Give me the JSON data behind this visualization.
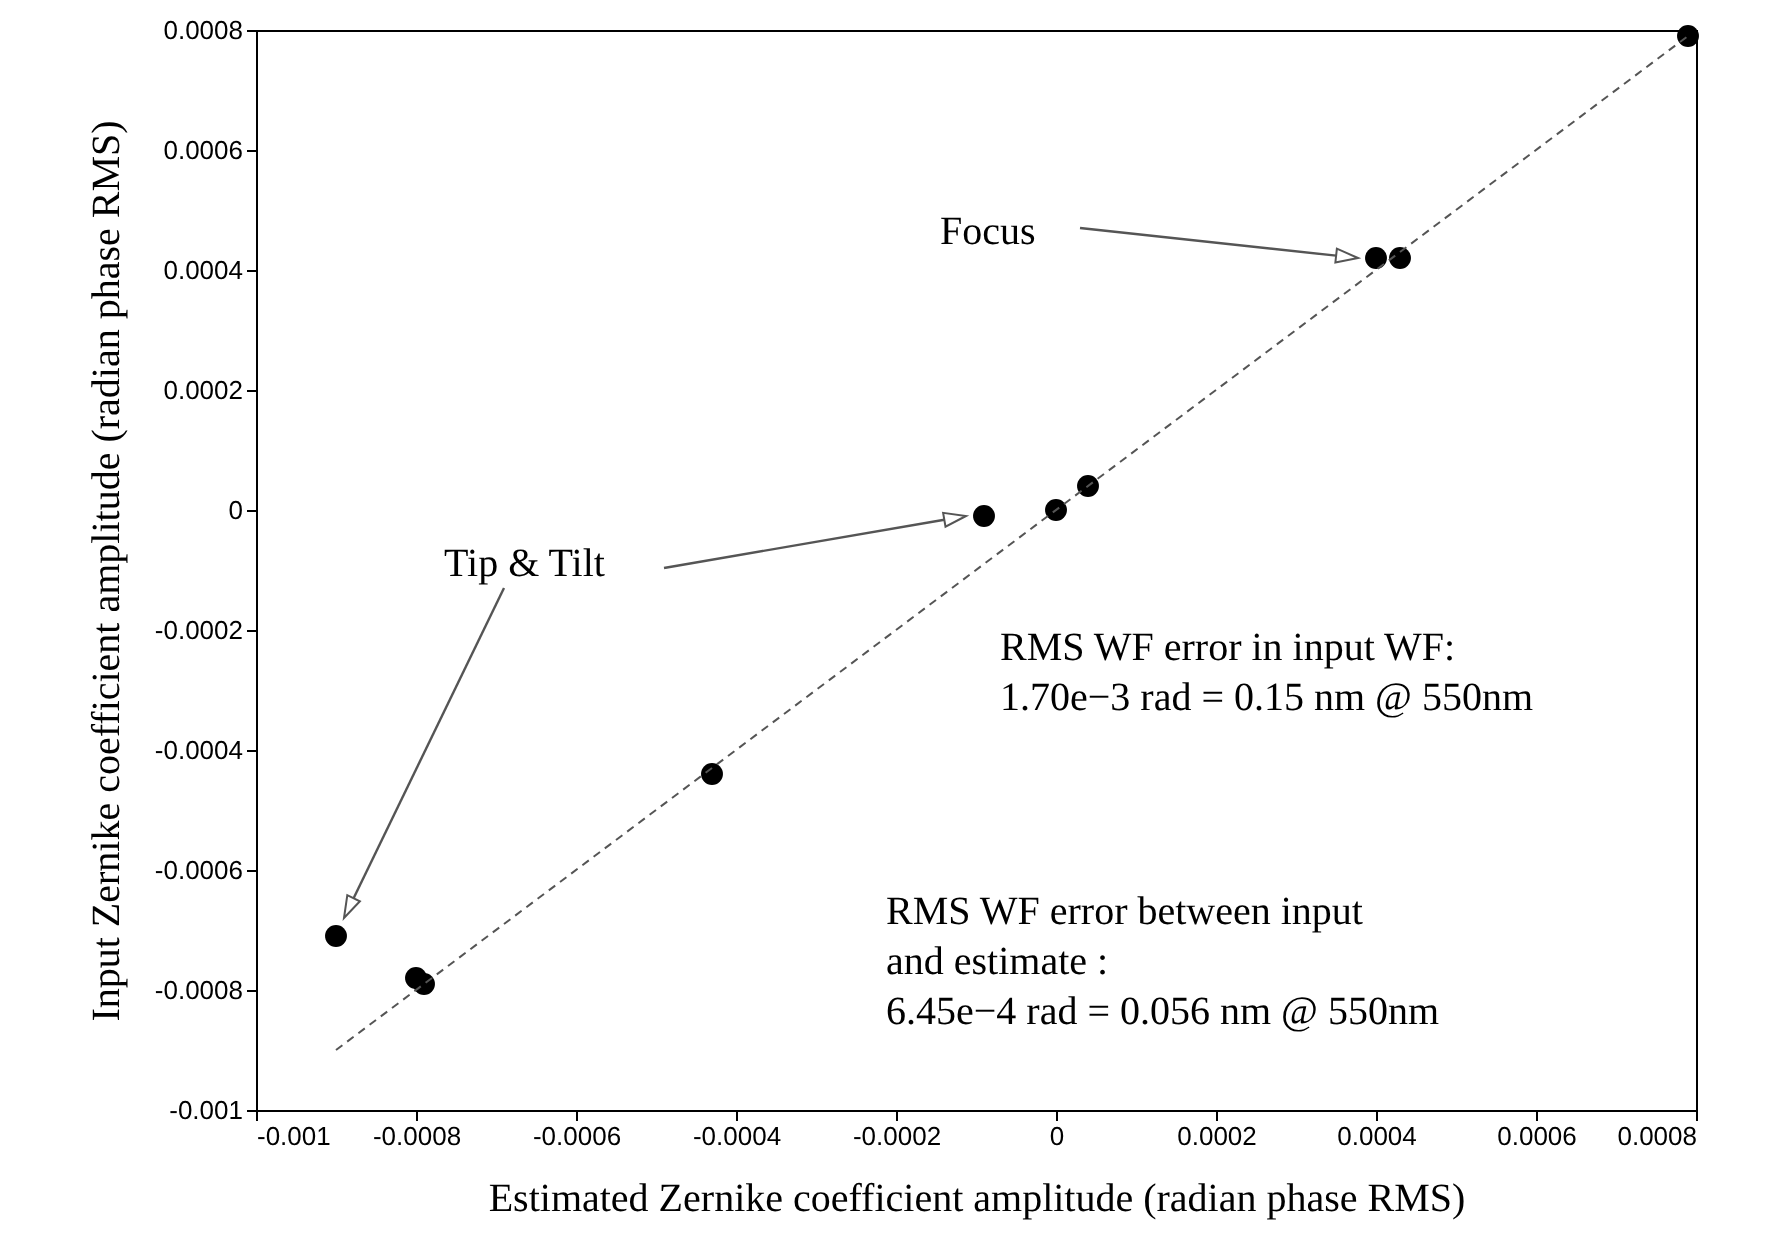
{
  "chart_data": {
    "type": "scatter",
    "xlabel": "Estimated Zernike coefficient amplitude (radian phase RMS)",
    "ylabel": "Input Zernike coefficient amplitude (radian phase RMS)",
    "xlim": [
      -0.001,
      0.0008
    ],
    "ylim": [
      -0.001,
      0.0008
    ],
    "xticks": [
      -0.001,
      -0.0008,
      -0.0006,
      -0.0004,
      -0.0002,
      0,
      0.0002,
      0.0004,
      0.0006,
      0.0008
    ],
    "yticks": [
      -0.001,
      -0.0008,
      -0.0006,
      -0.0004,
      -0.0002,
      0,
      0.0002,
      0.0004,
      0.0006,
      0.0008
    ],
    "series": [
      {
        "color": "#000000",
        "marker": "circle",
        "x": [
          -0.0009,
          -0.0008,
          -0.00079,
          -0.00043,
          -9e-05,
          0,
          4e-05,
          0.0004,
          0.00043,
          0.00079
        ],
        "values": [
          -0.00071,
          -0.00078,
          -0.00079,
          -0.00044,
          -1e-05,
          0,
          4e-05,
          0.00042,
          0.00042,
          0.00079
        ]
      },
      {
        "type": "line",
        "color": "#555555",
        "line_style": "dashed",
        "x": [
          -0.0009,
          0.00079
        ],
        "values": [
          -0.0009,
          0.00079
        ]
      }
    ],
    "annotations": [
      "Focus",
      "Tip & Tilt",
      "RMS WF error in input WF:\n1.70e−3 rad = 0.15 nm @ 550nm",
      "RMS WF error  between input\nand estimate :\n6.45e−4 rad = 0.056 nm @ 550nm"
    ]
  }
}
